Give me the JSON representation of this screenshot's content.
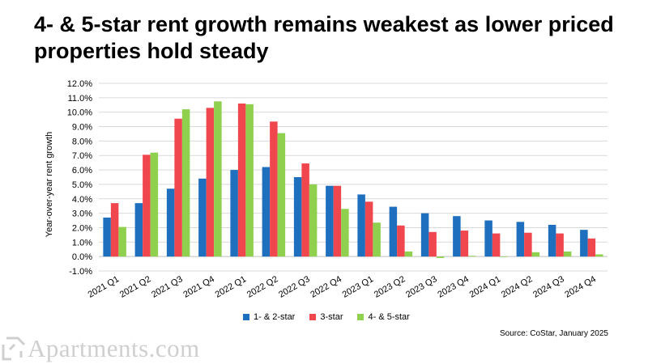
{
  "title": "4- & 5-star rent growth remains weakest as lower priced properties hold steady",
  "source": "Source: CoStar, January 2025",
  "logo_text": "Apartments.com",
  "colors": {
    "series1": "#1f6fbf",
    "series2": "#f0474f",
    "series3": "#8fd14f",
    "grid": "#d9d9d9",
    "logo": "#cfcfcf"
  },
  "chart_data": {
    "type": "bar",
    "ylabel": "Year-over-year rent growth",
    "xlabel": "",
    "ylim": [
      -1.0,
      12.0
    ],
    "ytick_step": 1.0,
    "ytick_labels": [
      "-1.0%",
      "0.0%",
      "1.0%",
      "2.0%",
      "3.0%",
      "4.0%",
      "5.0%",
      "6.0%",
      "7.0%",
      "8.0%",
      "9.0%",
      "10.0%",
      "11.0%",
      "12.0%"
    ],
    "grid": true,
    "legend_position": "bottom",
    "categories": [
      "2021 Q1",
      "2021 Q2",
      "2021 Q3",
      "2021 Q4",
      "2022 Q1",
      "2022 Q2",
      "2022 Q3",
      "2022 Q4",
      "2023 Q1",
      "2023 Q2",
      "2023 Q3",
      "2023 Q4",
      "2024 Q1",
      "2024 Q2",
      "2024 Q3",
      "2024 Q4"
    ],
    "series": [
      {
        "name": "1- & 2-star",
        "color": "#1f6fbf",
        "values": [
          2.7,
          3.7,
          4.7,
          5.4,
          6.0,
          6.2,
          5.5,
          4.9,
          4.3,
          3.45,
          3.0,
          2.8,
          2.5,
          2.4,
          2.2,
          1.85
        ]
      },
      {
        "name": "3-star",
        "color": "#f0474f",
        "values": [
          3.7,
          7.05,
          9.55,
          10.3,
          10.6,
          9.35,
          6.45,
          4.9,
          3.8,
          2.15,
          1.7,
          1.8,
          1.6,
          1.65,
          1.6,
          1.25
        ]
      },
      {
        "name": "4- & 5-star",
        "color": "#8fd14f",
        "values": [
          2.05,
          7.2,
          10.2,
          10.75,
          10.55,
          8.55,
          5.0,
          3.3,
          2.35,
          0.35,
          -0.1,
          0.05,
          0.0,
          0.3,
          0.35,
          0.15
        ]
      }
    ]
  }
}
